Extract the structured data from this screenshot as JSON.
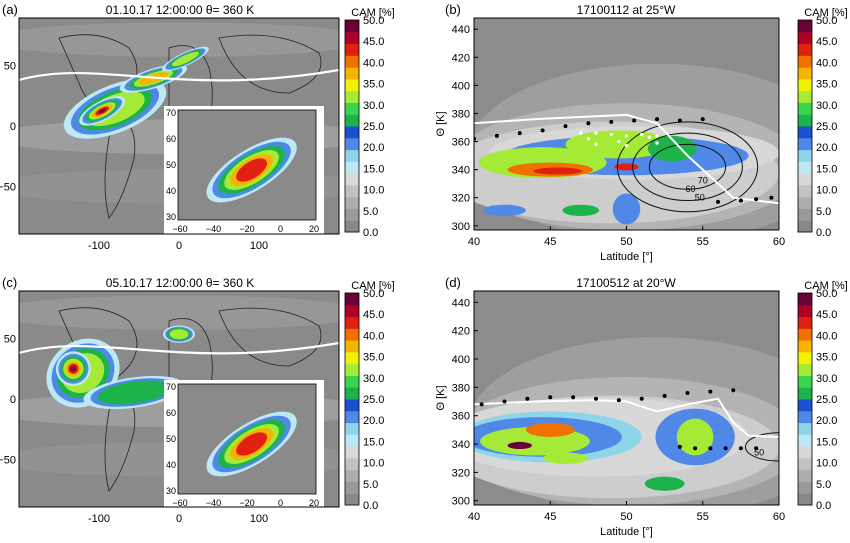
{
  "colorbar": {
    "title": "CAM [%]",
    "ticks": [
      "0.0",
      "5.0",
      "10.0",
      "15.0",
      "20.0",
      "25.0",
      "30.0",
      "35.0",
      "40.0",
      "45.0",
      "50.0"
    ],
    "colors": [
      "#888888",
      "#9a9a9a",
      "#adadad",
      "#c2c2c2",
      "#d8d8d8",
      "#bde8f5",
      "#8fd5ea",
      "#4f88e6",
      "#1d4fd0",
      "#1bb34a",
      "#39d54e",
      "#a6ea38",
      "#f2f200",
      "#f5b400",
      "#f07000",
      "#e02010",
      "#b00028",
      "#6a0038"
    ]
  },
  "panels": [
    {
      "id": "a",
      "label": "(a)",
      "title": "01.10.17 12:00:00  θ= 360 K",
      "kind": "map",
      "xticks": [
        "-100",
        "0",
        "100"
      ],
      "yticks": [
        "50",
        "0",
        "−50"
      ],
      "inset": {
        "xticks": [
          "−60",
          "−40",
          "−20",
          "0",
          "20"
        ],
        "yticks": [
          "70",
          "60",
          "50",
          "40",
          "30"
        ]
      },
      "plumes": [
        {
          "cx": 0.3,
          "cy": 0.42,
          "rx": 0.17,
          "ry": 0.11,
          "rot": -22,
          "level": 3
        },
        {
          "cx": 0.26,
          "cy": 0.43,
          "rx": 0.08,
          "ry": 0.045,
          "rot": -28,
          "level": 6
        },
        {
          "cx": 0.42,
          "cy": 0.28,
          "rx": 0.11,
          "ry": 0.045,
          "rot": -18,
          "level": 4
        },
        {
          "cx": 0.52,
          "cy": 0.19,
          "rx": 0.08,
          "ry": 0.03,
          "rot": -25,
          "level": 3
        }
      ]
    },
    {
      "id": "b",
      "label": "(b)",
      "title": "17100112 at 25°W",
      "kind": "section",
      "contour_labels": [
        "50",
        "60",
        "70"
      ]
    },
    {
      "id": "c",
      "label": "(c)",
      "title": "05.10.17 12:00:00  θ= 360 K",
      "kind": "map",
      "xticks": [
        "-100",
        "0",
        "100"
      ],
      "yticks": [
        "50",
        "0",
        "−50"
      ],
      "inset": {
        "xticks": [
          "−60",
          "−40",
          "−20",
          "0",
          "20"
        ],
        "yticks": [
          "70",
          "60",
          "50",
          "40",
          "30"
        ]
      },
      "plumes": [
        {
          "cx": 0.2,
          "cy": 0.38,
          "rx": 0.12,
          "ry": 0.15,
          "rot": -35,
          "level": 3
        },
        {
          "cx": 0.17,
          "cy": 0.36,
          "rx": 0.055,
          "ry": 0.08,
          "rot": -35,
          "level": 6
        },
        {
          "cx": 0.36,
          "cy": 0.47,
          "rx": 0.16,
          "ry": 0.07,
          "rot": -8,
          "level": 2
        },
        {
          "cx": 0.5,
          "cy": 0.2,
          "rx": 0.05,
          "ry": 0.04,
          "rot": 0,
          "level": 3
        }
      ]
    },
    {
      "id": "d",
      "label": "(d)",
      "title": "17100512 at 20°W",
      "kind": "section",
      "contour_labels": [
        "50"
      ]
    }
  ],
  "chart_data": [
    {
      "type": "heatmap",
      "panel": "b",
      "title": "17100112 at 25°W",
      "xlabel": "Latitude [°]",
      "ylabel": "Θ [K]",
      "xlim": [
        40,
        60
      ],
      "ylim": [
        297,
        448
      ],
      "xticks": [
        40,
        45,
        50,
        55,
        60
      ],
      "yticks": [
        300,
        320,
        340,
        360,
        380,
        400,
        420,
        440
      ],
      "colorbar_label": "CAM [%]",
      "fields": [
        {
          "lat": 50.5,
          "theta": 352,
          "rlat": 9.5,
          "rtheta": 19,
          "cam": 10
        },
        {
          "lat": 50,
          "theta": 350,
          "rlat": 8,
          "rtheta": 14,
          "cam": 20
        },
        {
          "lat": 44.5,
          "theta": 345,
          "rlat": 4.2,
          "rtheta": 11,
          "cam": 30
        },
        {
          "lat": 45,
          "theta": 340,
          "rlat": 2.8,
          "rtheta": 5,
          "cam": 40
        },
        {
          "lat": 45.5,
          "theta": 339,
          "rlat": 1.6,
          "rtheta": 2.5,
          "cam": 45
        },
        {
          "lat": 49.5,
          "theta": 358,
          "rlat": 3.5,
          "rtheta": 10,
          "cam": 30
        },
        {
          "lat": 53,
          "theta": 355,
          "rlat": 1.6,
          "rtheta": 9,
          "cam": 25
        },
        {
          "lat": 50,
          "theta": 342,
          "rlat": 0.8,
          "rtheta": 2.5,
          "cam": 45
        },
        {
          "lat": 50,
          "theta": 312,
          "rlat": 0.9,
          "rtheta": 11,
          "cam": 20
        },
        {
          "lat": 42,
          "theta": 311,
          "rlat": 1.4,
          "rtheta": 4,
          "cam": 20
        },
        {
          "lat": 47,
          "theta": 311,
          "rlat": 1.2,
          "rtheta": 4,
          "cam": 25
        }
      ],
      "tropopause": [
        [
          40,
          373
        ],
        [
          44,
          376
        ],
        [
          48,
          378
        ],
        [
          50,
          379
        ],
        [
          52,
          373
        ],
        [
          54,
          350
        ],
        [
          55.5,
          335
        ],
        [
          57,
          320
        ],
        [
          60,
          316
        ]
      ],
      "black_dots": [
        [
          40,
          362
        ],
        [
          41.5,
          364
        ],
        [
          43,
          366
        ],
        [
          44.5,
          368
        ],
        [
          46,
          371
        ],
        [
          47.5,
          373
        ],
        [
          49,
          374
        ],
        [
          50.5,
          375
        ],
        [
          52,
          376
        ],
        [
          53.5,
          375
        ],
        [
          55,
          376
        ],
        [
          56,
          317
        ],
        [
          57.5,
          318
        ],
        [
          58.5,
          319
        ],
        [
          59.5,
          320
        ]
      ],
      "white_dots": [
        [
          47,
          366
        ],
        [
          48,
          366
        ],
        [
          49,
          365
        ],
        [
          50,
          364
        ],
        [
          51,
          365
        ],
        [
          52,
          364
        ],
        [
          47.5,
          362
        ],
        [
          49.5,
          360
        ],
        [
          51.5,
          363
        ],
        [
          48,
          358
        ],
        [
          50,
          357
        ],
        [
          52,
          359
        ]
      ],
      "contours": [
        {
          "center": [
            54,
            342
          ],
          "radii": [
            [
              2.5,
              16
            ],
            [
              3.6,
              24
            ],
            [
              4.6,
              32
            ]
          ],
          "label_positions": [
            [
              54.8,
              318
            ],
            [
              54.2,
              324
            ],
            [
              55,
              330
            ]
          ]
        }
      ]
    },
    {
      "type": "heatmap",
      "panel": "d",
      "title": "17100512 at 20°W",
      "xlabel": "Latitude [°]",
      "ylabel": "Θ [K]",
      "xlim": [
        40,
        60
      ],
      "ylim": [
        297,
        448
      ],
      "xticks": [
        40,
        45,
        50,
        55,
        60
      ],
      "yticks": [
        300,
        320,
        340,
        360,
        380,
        400,
        420,
        440
      ],
      "colorbar_label": "CAM [%]",
      "fields": [
        {
          "lat": 48,
          "theta": 345,
          "rlat": 10,
          "rtheta": 28,
          "cam": 10
        },
        {
          "lat": 45,
          "theta": 345,
          "rlat": 6,
          "rtheta": 18,
          "cam": 15
        },
        {
          "lat": 44.5,
          "theta": 345,
          "rlat": 5.2,
          "rtheta": 14,
          "cam": 20
        },
        {
          "lat": 44,
          "theta": 342,
          "rlat": 3.6,
          "rtheta": 10,
          "cam": 30
        },
        {
          "lat": 45,
          "theta": 350,
          "rlat": 1.6,
          "rtheta": 5,
          "cam": 40
        },
        {
          "lat": 43,
          "theta": 339,
          "rlat": 0.8,
          "rtheta": 2.5,
          "cam": 50
        },
        {
          "lat": 54.5,
          "theta": 345,
          "rlat": 2.6,
          "rtheta": 20,
          "cam": 20
        },
        {
          "lat": 54.5,
          "theta": 345,
          "rlat": 1.2,
          "rtheta": 13,
          "cam": 30
        },
        {
          "lat": 52.5,
          "theta": 312,
          "rlat": 1.3,
          "rtheta": 5,
          "cam": 25
        },
        {
          "lat": 46,
          "theta": 330,
          "rlat": 1.5,
          "rtheta": 4,
          "cam": 30
        }
      ],
      "tropopause": [
        [
          40,
          368
        ],
        [
          44,
          370
        ],
        [
          48,
          371
        ],
        [
          50,
          370
        ],
        [
          52,
          363
        ],
        [
          54,
          368
        ],
        [
          56,
          372
        ],
        [
          57,
          355
        ],
        [
          58,
          346
        ],
        [
          60,
          345
        ]
      ],
      "black_dots": [
        [
          40.5,
          368
        ],
        [
          42,
          370
        ],
        [
          43.5,
          372
        ],
        [
          45,
          373
        ],
        [
          46.5,
          373
        ],
        [
          48,
          372
        ],
        [
          49.5,
          371
        ],
        [
          51,
          372
        ],
        [
          52.5,
          374
        ],
        [
          54,
          376
        ],
        [
          55.5,
          377
        ],
        [
          57,
          378
        ],
        [
          53.5,
          338
        ],
        [
          54.5,
          337
        ],
        [
          55.5,
          337
        ],
        [
          56.5,
          337
        ],
        [
          57.5,
          337
        ],
        [
          58.5,
          337
        ]
      ],
      "white_dots": [],
      "contours": [
        {
          "center": [
            60,
            338
          ],
          "radii": [
            [
              2.2,
              10
            ]
          ],
          "label_positions": [
            [
              58.7,
              332
            ]
          ]
        }
      ]
    }
  ]
}
